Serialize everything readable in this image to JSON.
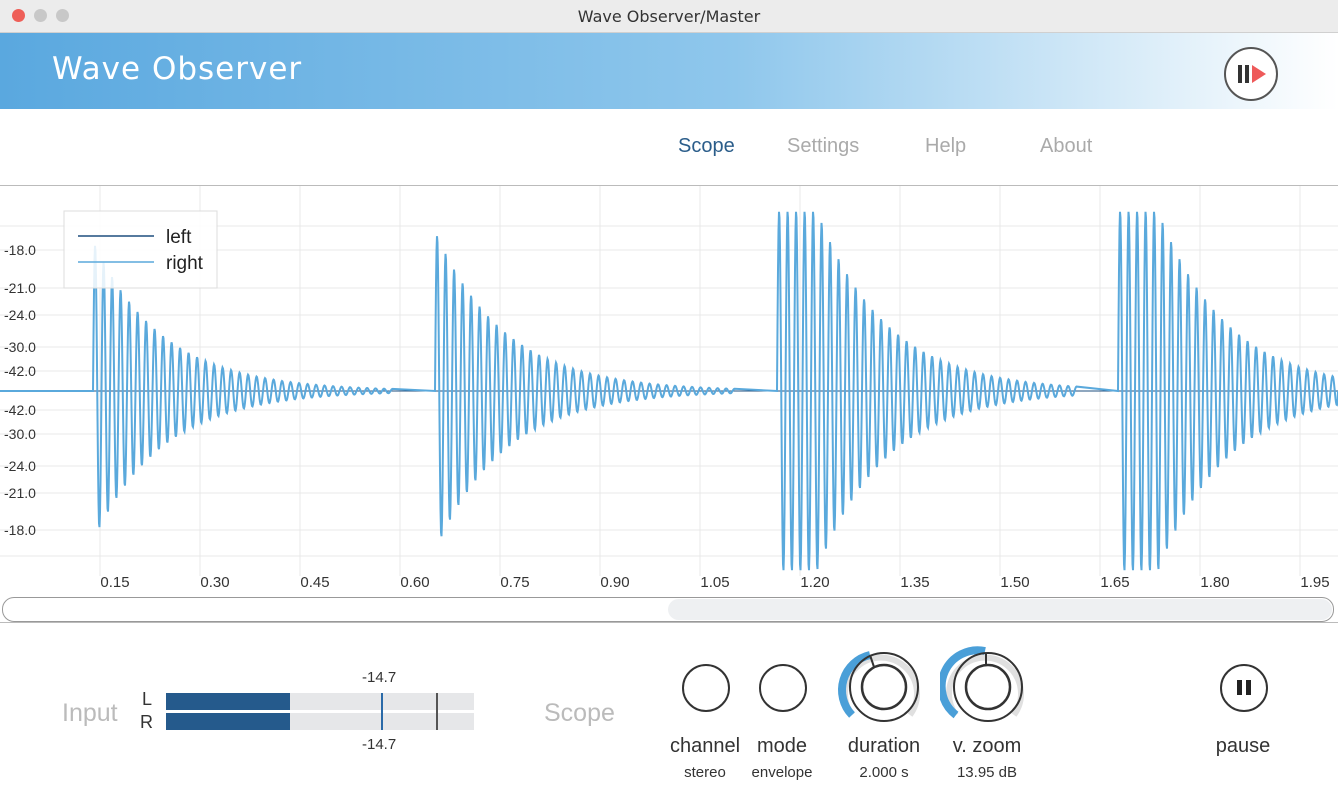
{
  "window": {
    "title": "Wave Observer/Master"
  },
  "header": {
    "title": "Wave Observer"
  },
  "nav": [
    "Scope",
    "Settings",
    "Help",
    "About"
  ],
  "scope": {
    "legend": [
      "left",
      "right"
    ],
    "y_labels": [
      "-18.0",
      "-21.0",
      "-24.0",
      "-30.0",
      "-42.0",
      "-42.0",
      "-30.0",
      "-24.0",
      "-21.0",
      "-18.0"
    ],
    "x_labels": [
      "0.15",
      "0.30",
      "0.45",
      "0.60",
      "0.75",
      "0.90",
      "1.05",
      "1.20",
      "1.35",
      "1.50",
      "1.65",
      "1.80",
      "1.95"
    ]
  },
  "input": {
    "label": "Input",
    "channels": [
      "L",
      "R"
    ],
    "peak_top": "-14.7",
    "peak_bottom": "-14.7"
  },
  "controls": {
    "label": "Scope",
    "knobs": [
      {
        "name": "channel",
        "value": "stereo"
      },
      {
        "name": "mode",
        "value": "envelope"
      },
      {
        "name": "duration",
        "value": "2.000 s"
      },
      {
        "name": "v. zoom",
        "value": "13.95 dB"
      }
    ],
    "pause": "pause"
  }
}
